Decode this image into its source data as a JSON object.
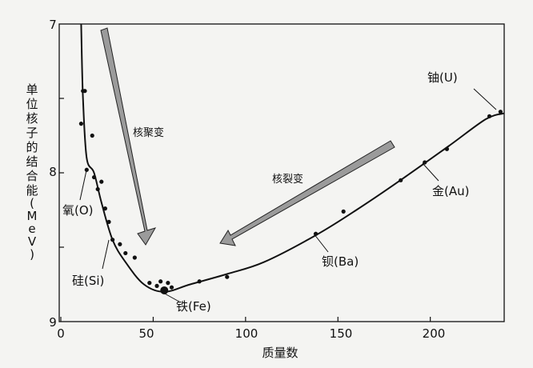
{
  "chart_data": {
    "type": "scatter",
    "title": "",
    "xlabel": "质量数",
    "ylabel_chars": [
      "单",
      "位",
      "核",
      "子",
      "的",
      "结",
      "合",
      "能",
      "(",
      "M",
      "e",
      "V",
      ")"
    ],
    "xlim": [
      0,
      240
    ],
    "ylim": [
      7,
      9
    ],
    "y_inverted": true,
    "x_ticks": [
      0,
      50,
      100,
      150,
      200
    ],
    "y_ticks": [
      7,
      8,
      9
    ],
    "grid": false,
    "legend": "none",
    "series": [
      {
        "values": [
          {
            "x": 11,
            "y": 7.67
          },
          {
            "x": 12,
            "y": 7.45
          },
          {
            "x": 13,
            "y": 7.45
          },
          {
            "x": 14,
            "y": 7.98
          },
          {
            "x": 17,
            "y": 7.75
          },
          {
            "x": 18,
            "y": 8.03
          },
          {
            "x": 20,
            "y": 8.11
          },
          {
            "x": 22,
            "y": 8.06
          },
          {
            "x": 24,
            "y": 8.24
          },
          {
            "x": 26,
            "y": 8.33
          },
          {
            "x": 28,
            "y": 8.45
          },
          {
            "x": 32,
            "y": 8.48
          },
          {
            "x": 35,
            "y": 8.54
          },
          {
            "x": 40,
            "y": 8.57
          },
          {
            "x": 48,
            "y": 8.74
          },
          {
            "x": 52,
            "y": 8.76
          },
          {
            "x": 54,
            "y": 8.73
          },
          {
            "x": 56,
            "y": 8.79
          },
          {
            "x": 58,
            "y": 8.74
          },
          {
            "x": 60,
            "y": 8.77
          },
          {
            "x": 75,
            "y": 8.73
          },
          {
            "x": 90,
            "y": 8.7
          },
          {
            "x": 138,
            "y": 8.41
          },
          {
            "x": 153,
            "y": 8.26
          },
          {
            "x": 184,
            "y": 8.05
          },
          {
            "x": 197,
            "y": 7.93
          },
          {
            "x": 209,
            "y": 7.84
          },
          {
            "x": 232,
            "y": 7.62
          },
          {
            "x": 238,
            "y": 7.59
          }
        ]
      }
    ],
    "curve": [
      {
        "x": 11,
        "y": 7.0
      },
      {
        "x": 12,
        "y": 7.5
      },
      {
        "x": 14,
        "y": 7.9
      },
      {
        "x": 18,
        "y": 8.0
      },
      {
        "x": 22,
        "y": 8.2
      },
      {
        "x": 28,
        "y": 8.45
      },
      {
        "x": 35,
        "y": 8.6
      },
      {
        "x": 45,
        "y": 8.75
      },
      {
        "x": 56,
        "y": 8.8
      },
      {
        "x": 70,
        "y": 8.75
      },
      {
        "x": 90,
        "y": 8.68
      },
      {
        "x": 110,
        "y": 8.6
      },
      {
        "x": 138,
        "y": 8.42
      },
      {
        "x": 160,
        "y": 8.25
      },
      {
        "x": 185,
        "y": 8.04
      },
      {
        "x": 210,
        "y": 7.82
      },
      {
        "x": 230,
        "y": 7.64
      },
      {
        "x": 240,
        "y": 7.6
      }
    ],
    "annotations": [
      {
        "id": "fission",
        "text": "核裂变"
      },
      {
        "id": "fusion",
        "text": "核聚变"
      },
      {
        "id": "uranium",
        "text": "铀(U)"
      },
      {
        "id": "gold",
        "text": "金(Au)"
      },
      {
        "id": "barium",
        "text": "钡(Ba)"
      },
      {
        "id": "iron",
        "text": "铁(Fe)"
      },
      {
        "id": "silicon",
        "text": "硅(Si)"
      },
      {
        "id": "oxygen",
        "text": "氧(O)"
      }
    ],
    "colors": {
      "background": "#f4f4f2",
      "ink": "#111111",
      "arrow_fill": "#9b9b9b"
    }
  }
}
